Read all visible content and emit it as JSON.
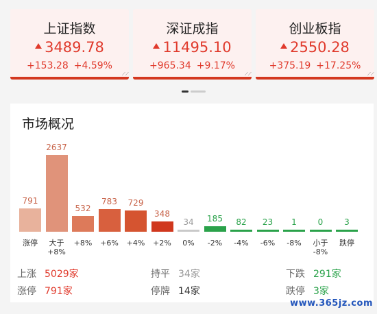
{
  "indices": [
    {
      "name": "上证指数",
      "price": "3489.78",
      "change": "+153.28",
      "pct": "+4.59%"
    },
    {
      "name": "深证成指",
      "price": "11495.10",
      "change": "+965.34",
      "pct": "+9.17%"
    },
    {
      "name": "创业板指",
      "price": "2550.28",
      "change": "+375.19",
      "pct": "+17.25%"
    }
  ],
  "market": {
    "title": "市场概况",
    "stats": {
      "rise_label": "上涨",
      "rise_value": "5029家",
      "flat_label": "持平",
      "flat_value": "34家",
      "fall_label": "下跌",
      "fall_value": "291家",
      "limit_up_label": "涨停",
      "limit_up_value": "791家",
      "suspend_label": "停牌",
      "suspend_value": "14家",
      "limit_down_label": "跌停",
      "limit_down_value": "3家"
    }
  },
  "chart_data": {
    "type": "bar",
    "categories": [
      "涨停",
      "大于\n+8%",
      "+8%",
      "+6%",
      "+4%",
      "+2%",
      "0%",
      "-2%",
      "-4%",
      "-6%",
      "-8%",
      "小于\n-8%",
      "跌停"
    ],
    "values": [
      791,
      2637,
      532,
      783,
      729,
      348,
      34,
      185,
      82,
      23,
      1,
      0,
      3
    ],
    "colors": [
      "#e8b29c",
      "#e0937a",
      "#dd7a5a",
      "#d8603e",
      "#d55430",
      "#d0381e",
      "#c9c9c9",
      "#2aa24a",
      "#2aa24a",
      "#2aa24a",
      "#2aa24a",
      "#2aa24a",
      "#2aa24a"
    ],
    "label_colors": [
      "#c8644a",
      "#c8644a",
      "#c8644a",
      "#c8644a",
      "#c8644a",
      "#c8644a",
      "#999999",
      "#2aa24a",
      "#2aa24a",
      "#2aa24a",
      "#2aa24a",
      "#2aa24a",
      "#2aa24a"
    ]
  },
  "watermark": "www.365jz.com"
}
